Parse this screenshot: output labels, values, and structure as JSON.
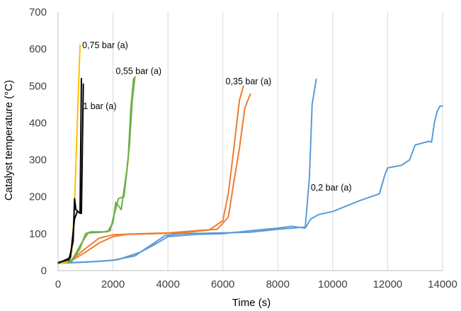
{
  "chart_data": {
    "type": "line",
    "title": "",
    "xlabel": "Time (s)",
    "ylabel": "Catalyst temperature (°C)",
    "xlim": [
      0,
      14000
    ],
    "ylim": [
      0,
      700
    ],
    "xticks": [
      0,
      2000,
      4000,
      6000,
      8000,
      10000,
      12000,
      14000
    ],
    "yticks": [
      0,
      100,
      200,
      300,
      400,
      500,
      600,
      700
    ],
    "grid": "vertical",
    "legend": "none",
    "annotations": [
      {
        "text": "0,75 bar (a)",
        "x": 880,
        "y": 602
      },
      {
        "text": "1 bar (a)",
        "x": 910,
        "y": 437
      },
      {
        "text": "0,55 bar (a)",
        "x": 2100,
        "y": 532
      },
      {
        "text": "0,35 bar (a)",
        "x": 6100,
        "y": 504
      },
      {
        "text": "0,2 bar (a)",
        "x": 9200,
        "y": 217
      }
    ],
    "series": [
      {
        "color": "#5b9bd5",
        "points": [
          [
            0,
            20
          ],
          [
            1000,
            23
          ],
          [
            2000,
            28
          ],
          [
            2800,
            40
          ],
          [
            3400,
            70
          ],
          [
            3900,
            95
          ],
          [
            4500,
            100
          ],
          [
            6000,
            102
          ],
          [
            7000,
            104
          ],
          [
            8000,
            112
          ],
          [
            9000,
            118
          ],
          [
            9150,
            250
          ],
          [
            9250,
            450
          ],
          [
            9400,
            518
          ]
        ]
      },
      {
        "color": "#5b9bd5",
        "points": [
          [
            0,
            20
          ],
          [
            1500,
            25
          ],
          [
            2200,
            30
          ],
          [
            3000,
            50
          ],
          [
            3500,
            70
          ],
          [
            4000,
            92
          ],
          [
            5000,
            98
          ],
          [
            6000,
            100
          ],
          [
            7000,
            108
          ],
          [
            8000,
            115
          ],
          [
            8500,
            120
          ],
          [
            9000,
            115
          ],
          [
            9200,
            140
          ],
          [
            9500,
            152
          ],
          [
            10000,
            160
          ],
          [
            11000,
            190
          ],
          [
            11700,
            208
          ],
          [
            11900,
            260
          ],
          [
            12000,
            278
          ],
          [
            12500,
            285
          ],
          [
            12800,
            300
          ],
          [
            13000,
            340
          ],
          [
            13500,
            350
          ],
          [
            13600,
            348
          ],
          [
            13700,
            400
          ],
          [
            13800,
            430
          ],
          [
            13900,
            445
          ],
          [
            14000,
            446
          ]
        ]
      },
      {
        "color": "#ed7d31",
        "points": [
          [
            0,
            22
          ],
          [
            300,
            25
          ],
          [
            600,
            32
          ],
          [
            1000,
            50
          ],
          [
            1500,
            75
          ],
          [
            2000,
            92
          ],
          [
            2500,
            98
          ],
          [
            3500,
            100
          ],
          [
            4500,
            102
          ],
          [
            5500,
            110
          ],
          [
            6000,
            135
          ],
          [
            6200,
            210
          ],
          [
            6400,
            330
          ],
          [
            6600,
            460
          ],
          [
            6750,
            500
          ]
        ]
      },
      {
        "color": "#ed7d31",
        "points": [
          [
            0,
            20
          ],
          [
            500,
            30
          ],
          [
            1000,
            60
          ],
          [
            1500,
            88
          ],
          [
            2000,
            97
          ],
          [
            3000,
            100
          ],
          [
            4000,
            102
          ],
          [
            5000,
            108
          ],
          [
            5800,
            112
          ],
          [
            6200,
            145
          ],
          [
            6400,
            240
          ],
          [
            6600,
            330
          ],
          [
            6800,
            440
          ],
          [
            7000,
            478
          ]
        ]
      },
      {
        "color": "#70ad47",
        "points": [
          [
            0,
            20
          ],
          [
            500,
            25
          ],
          [
            800,
            60
          ],
          [
            1000,
            100
          ],
          [
            1200,
            105
          ],
          [
            1800,
            105
          ],
          [
            2000,
            130
          ],
          [
            2100,
            185
          ],
          [
            2300,
            165
          ],
          [
            2500,
            270
          ],
          [
            2600,
            340
          ],
          [
            2700,
            460
          ],
          [
            2800,
            525
          ]
        ]
      },
      {
        "color": "#70ad47",
        "points": [
          [
            0,
            20
          ],
          [
            500,
            28
          ],
          [
            900,
            80
          ],
          [
            1100,
            102
          ],
          [
            1600,
            104
          ],
          [
            1900,
            108
          ],
          [
            2000,
            140
          ],
          [
            2200,
            195
          ],
          [
            2400,
            200
          ],
          [
            2550,
            300
          ],
          [
            2650,
            440
          ],
          [
            2750,
            520
          ]
        ]
      },
      {
        "color": "#ffc000",
        "points": [
          [
            0,
            20
          ],
          [
            300,
            22
          ],
          [
            500,
            50
          ],
          [
            600,
            180
          ],
          [
            700,
            400
          ],
          [
            800,
            610
          ]
        ]
      },
      {
        "color": "#000000",
        "points": [
          [
            0,
            22
          ],
          [
            400,
            30
          ],
          [
            550,
            80
          ],
          [
            600,
            195
          ],
          [
            650,
            165
          ],
          [
            800,
            155
          ],
          [
            850,
            520
          ]
        ]
      },
      {
        "color": "#000000",
        "points": [
          [
            0,
            20
          ],
          [
            450,
            35
          ],
          [
            600,
            140
          ],
          [
            700,
            160
          ],
          [
            850,
            155
          ],
          [
            920,
            505
          ]
        ]
      }
    ]
  }
}
